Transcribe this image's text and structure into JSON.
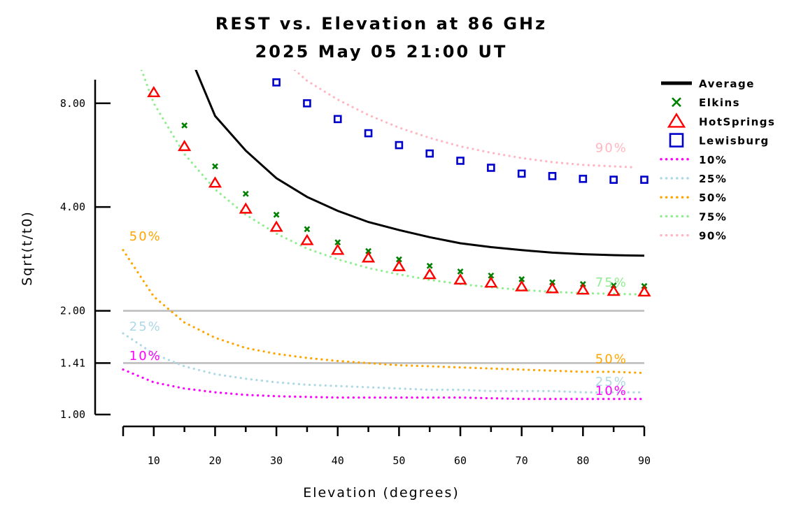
{
  "chart_data": {
    "type": "scatter",
    "title": "REST vs. Elevation at 86 GHz",
    "subtitle": "2025 May 05 21:00 UT",
    "xlabel": "Elevation (degrees)",
    "ylabel": "Sqrt(t/t0)",
    "xlim": [
      5,
      90
    ],
    "ylim": [
      1.0,
      10.0
    ],
    "y_scale": "log",
    "xticks": [
      10,
      20,
      30,
      40,
      50,
      60,
      70,
      80,
      90
    ],
    "xtick_labels": [
      "10",
      "20",
      "30",
      "40",
      "50",
      "60",
      "70",
      "80",
      "90"
    ],
    "yticks": [
      1.0,
      1.41,
      2.0,
      4.0,
      8.0
    ],
    "ytick_labels": [
      "1.00",
      "1.41",
      "2.00",
      "4.00",
      "8.00"
    ],
    "reference_lines": [
      1.41,
      2.0
    ],
    "legend_position": "right",
    "series": [
      {
        "name": "Average",
        "kind": "line",
        "color": "#000000",
        "x": [
          15,
          20,
          25,
          30,
          35,
          40,
          45,
          50,
          55,
          60,
          65,
          70,
          75,
          80,
          85,
          90
        ],
        "y": [
          12.0,
          7.35,
          5.83,
          4.85,
          4.28,
          3.9,
          3.62,
          3.43,
          3.27,
          3.14,
          3.06,
          3.0,
          2.95,
          2.92,
          2.9,
          2.89
        ]
      },
      {
        "name": "Elkins",
        "kind": "marker",
        "marker": "x",
        "color": "#008000",
        "x": [
          15,
          20,
          25,
          30,
          35,
          40,
          45,
          50,
          55,
          60,
          65,
          70,
          75,
          80,
          85,
          90
        ],
        "y": [
          6.9,
          5.25,
          4.37,
          3.8,
          3.45,
          3.16,
          2.98,
          2.82,
          2.7,
          2.6,
          2.53,
          2.47,
          2.42,
          2.39,
          2.37,
          2.36
        ]
      },
      {
        "name": "HotSprings",
        "kind": "marker",
        "marker": "triangle",
        "color": "#ff0000",
        "x": [
          10,
          15,
          20,
          25,
          30,
          35,
          40,
          45,
          50,
          55,
          60,
          65,
          70,
          75,
          80,
          85,
          90
        ],
        "y": [
          8.6,
          6.0,
          4.7,
          3.95,
          3.5,
          3.2,
          3.0,
          2.85,
          2.69,
          2.55,
          2.46,
          2.41,
          2.35,
          2.32,
          2.3,
          2.28,
          2.27
        ]
      },
      {
        "name": "Lewisburg",
        "kind": "marker",
        "marker": "square",
        "color": "#0000cc",
        "x": [
          30,
          35,
          40,
          45,
          50,
          55,
          60,
          65,
          70,
          75,
          80,
          85,
          90
        ],
        "y": [
          9.2,
          8.0,
          7.2,
          6.55,
          6.05,
          5.72,
          5.45,
          5.2,
          5.0,
          4.92,
          4.83,
          4.8,
          4.8
        ]
      },
      {
        "name": "10%",
        "kind": "dotted",
        "color": "#ff00ff",
        "x": [
          5,
          10,
          15,
          20,
          25,
          30,
          35,
          40,
          45,
          50,
          55,
          60,
          65,
          70,
          75,
          80,
          85,
          90
        ],
        "y": [
          1.35,
          1.24,
          1.19,
          1.16,
          1.14,
          1.13,
          1.125,
          1.12,
          1.12,
          1.12,
          1.12,
          1.12,
          1.115,
          1.11,
          1.11,
          1.11,
          1.11,
          1.11
        ]
      },
      {
        "name": "25%",
        "kind": "dotted",
        "color": "#add8e6",
        "x": [
          5,
          10,
          15,
          20,
          25,
          30,
          35,
          40,
          45,
          50,
          55,
          60,
          65,
          70,
          75,
          80,
          85,
          90
        ],
        "y": [
          1.72,
          1.5,
          1.38,
          1.31,
          1.27,
          1.24,
          1.22,
          1.21,
          1.2,
          1.19,
          1.18,
          1.18,
          1.17,
          1.17,
          1.17,
          1.16,
          1.16,
          1.16
        ]
      },
      {
        "name": "50%",
        "kind": "dotted",
        "color": "#ffa500",
        "x": [
          5,
          10,
          15,
          20,
          25,
          30,
          35,
          40,
          45,
          50,
          55,
          60,
          65,
          70,
          75,
          80,
          85,
          90
        ],
        "y": [
          3.0,
          2.2,
          1.85,
          1.67,
          1.56,
          1.5,
          1.46,
          1.43,
          1.41,
          1.39,
          1.38,
          1.37,
          1.36,
          1.35,
          1.34,
          1.33,
          1.33,
          1.32
        ]
      },
      {
        "name": "75%",
        "kind": "dotted",
        "color": "#90ee90",
        "x": [
          8,
          10,
          15,
          20,
          25,
          30,
          35,
          40,
          45,
          50,
          55,
          60,
          65,
          70,
          75,
          80,
          85,
          90
        ],
        "y": [
          10.0,
          8.0,
          5.7,
          4.5,
          3.8,
          3.35,
          3.03,
          2.82,
          2.66,
          2.55,
          2.46,
          2.39,
          2.34,
          2.3,
          2.27,
          2.25,
          2.24,
          2.23
        ]
      },
      {
        "name": "90%",
        "kind": "dotted",
        "color": "#ffb6c1",
        "x": [
          33,
          35,
          40,
          45,
          50,
          55,
          60,
          65,
          70,
          75,
          80,
          85,
          88
        ],
        "y": [
          10.0,
          9.3,
          8.2,
          7.4,
          6.8,
          6.35,
          6.0,
          5.75,
          5.55,
          5.4,
          5.3,
          5.25,
          5.22
        ]
      }
    ],
    "curve_labels": [
      {
        "text": "50%",
        "color": "#ffa500",
        "x": 6,
        "y": 3.2
      },
      {
        "text": "25%",
        "color": "#add8e6",
        "x": 6,
        "y": 1.75
      },
      {
        "text": "10%",
        "color": "#ff00ff",
        "x": 6,
        "y": 1.44
      },
      {
        "text": "90%",
        "color": "#ffb6c1",
        "x": 82,
        "y": 5.78
      },
      {
        "text": "75%",
        "color": "#90ee90",
        "x": 82,
        "y": 2.35
      },
      {
        "text": "50%",
        "color": "#ffa500",
        "x": 82,
        "y": 1.41
      },
      {
        "text": "25%",
        "color": "#add8e6",
        "x": 82,
        "y": 1.21
      },
      {
        "text": "10%",
        "color": "#ff00ff",
        "x": 82,
        "y": 1.14
      }
    ]
  }
}
